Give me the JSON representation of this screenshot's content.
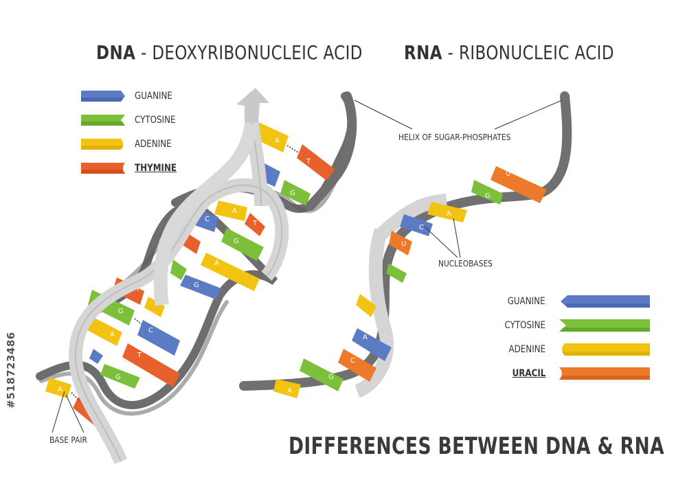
{
  "titles": {
    "dna_bold": "DNA",
    "dna_rest": " - DEOXYRIBONUCLEIC ACID",
    "rna_bold": "RNA",
    "rna_rest": " - RIBONUCLEIC ACID",
    "main": "DIFFERENCES BETWEEN DNA & RNA"
  },
  "dna_legend": [
    {
      "label": "GUANINE",
      "color": "#5b7cc4"
    },
    {
      "label": "CYTOSINE",
      "color": "#7cbf3a"
    },
    {
      "label": "ADENINE",
      "color": "#f2c411"
    },
    {
      "label": "THYMINE",
      "color": "#e8602b"
    }
  ],
  "rna_legend": [
    {
      "label": "GUANINE",
      "color": "#5b7cc4"
    },
    {
      "label": "CYTOSINE",
      "color": "#7cbf3a"
    },
    {
      "label": "ADENINE",
      "color": "#f2c411"
    },
    {
      "label": "URACIL",
      "color": "#ec7a2a"
    }
  ],
  "annotations": {
    "helix": "HELIX OF SUGAR-PHOSPHATES",
    "nucleobases": "NUCLEOBASES",
    "base_pair": "BASE PAIR"
  },
  "watermark_id": "#518723486",
  "colors": {
    "strand_dark": "#6d6d6d",
    "strand_light": "#d8d8d8",
    "strand_mid": "#a9a9a9",
    "guanine": "#5b7cc4",
    "cytosine": "#7cbf3a",
    "adenine": "#f2c411",
    "thymine": "#e8602b",
    "uracil": "#ec7a2a"
  },
  "base_letters": {
    "dna": [
      "A",
      "T",
      "G",
      "A",
      "T",
      "C",
      "G",
      "T",
      "A",
      "G",
      "T",
      "G",
      "C",
      "A",
      "T",
      "G",
      "A"
    ],
    "rna": [
      "U",
      "G",
      "A",
      "C",
      "U",
      "A",
      "C",
      "U",
      "G",
      "A"
    ]
  }
}
